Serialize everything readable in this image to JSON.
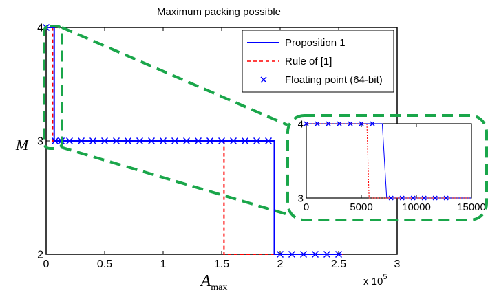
{
  "chart_data": {
    "type": "line",
    "title": "Maximum packing possible",
    "xlabel": "A",
    "xlabel_sub": "max",
    "ylabel": "M",
    "x_multiplier": "x 10",
    "x_multiplier_exp": "5",
    "xlim": [
      0,
      300000
    ],
    "ylim": [
      2,
      4
    ],
    "xticks": [
      {
        "value": 0,
        "label": "0"
      },
      {
        "value": 50000,
        "label": "0.5"
      },
      {
        "value": 100000,
        "label": "1"
      },
      {
        "value": 150000,
        "label": "1.5"
      },
      {
        "value": 200000,
        "label": "2"
      },
      {
        "value": 250000,
        "label": "2.5"
      },
      {
        "value": 300000,
        "label": "3"
      }
    ],
    "yticks": [
      {
        "value": 2,
        "label": "2"
      },
      {
        "value": 3,
        "label": "3"
      },
      {
        "value": 4,
        "label": "4"
      }
    ],
    "legend_position": "top-right",
    "series": [
      {
        "name": "Proposition 1",
        "style": "solid",
        "color": "#0000ff",
        "x": [
          0,
          6900,
          6900,
          195000,
          195000,
          253000
        ],
        "y": [
          4,
          4,
          3,
          3,
          2,
          2
        ]
      },
      {
        "name": "Rule of [1]",
        "style": "dashed",
        "color": "#ff0000",
        "x": [
          0,
          5500,
          5500,
          152000,
          152000,
          255000
        ],
        "y": [
          4,
          4,
          3,
          3,
          2,
          2
        ]
      },
      {
        "name": "Floating point (64-bit)",
        "style": "x-markers",
        "color": "#0000ff",
        "x": [
          0,
          7700,
          13000,
          20000,
          30000,
          40000,
          50000,
          60000,
          70000,
          80000,
          90000,
          100000,
          110000,
          120000,
          130000,
          140000,
          150000,
          160000,
          170000,
          180000,
          190000,
          200000,
          210000,
          220000,
          230000,
          240000,
          250000
        ],
        "y": [
          4,
          3,
          3,
          3,
          3,
          3,
          3,
          3,
          3,
          3,
          3,
          3,
          3,
          3,
          3,
          3,
          3,
          3,
          3,
          3,
          3,
          2,
          2,
          2,
          2,
          2,
          2
        ]
      }
    ],
    "inset": {
      "xlim": [
        0,
        15000
      ],
      "ylim": [
        3,
        4
      ],
      "xticks": [
        {
          "value": 0,
          "label": "0"
        },
        {
          "value": 5000,
          "label": "5000"
        },
        {
          "value": 10000,
          "label": "10000"
        },
        {
          "value": 15000,
          "label": "15000"
        }
      ],
      "yticks": [
        {
          "value": 3,
          "label": "3"
        },
        {
          "value": 4,
          "label": "4"
        }
      ],
      "series": [
        {
          "name": "Proposition 1",
          "style": "solid",
          "color": "#0000ff",
          "x": [
            0,
            6900,
            7300,
            15000
          ],
          "y": [
            4,
            4,
            3,
            3
          ]
        },
        {
          "name": "Rule of [1]",
          "style": "dotted",
          "color": "#ff0000",
          "x": [
            0,
            5500,
            5700,
            15000
          ],
          "y": [
            4,
            4,
            3,
            3
          ]
        },
        {
          "name": "Floating point (64-bit)",
          "style": "x-markers",
          "color": "#0000ff",
          "x": [
            0,
            1000,
            2000,
            3000,
            4000,
            5000,
            6000,
            7700,
            8700,
            9700,
            10700,
            11700,
            12700
          ],
          "y": [
            4,
            4,
            4,
            4,
            4,
            4,
            4,
            3,
            3,
            3,
            3,
            3,
            3
          ]
        }
      ]
    },
    "callout_color": "#1aa64a"
  }
}
